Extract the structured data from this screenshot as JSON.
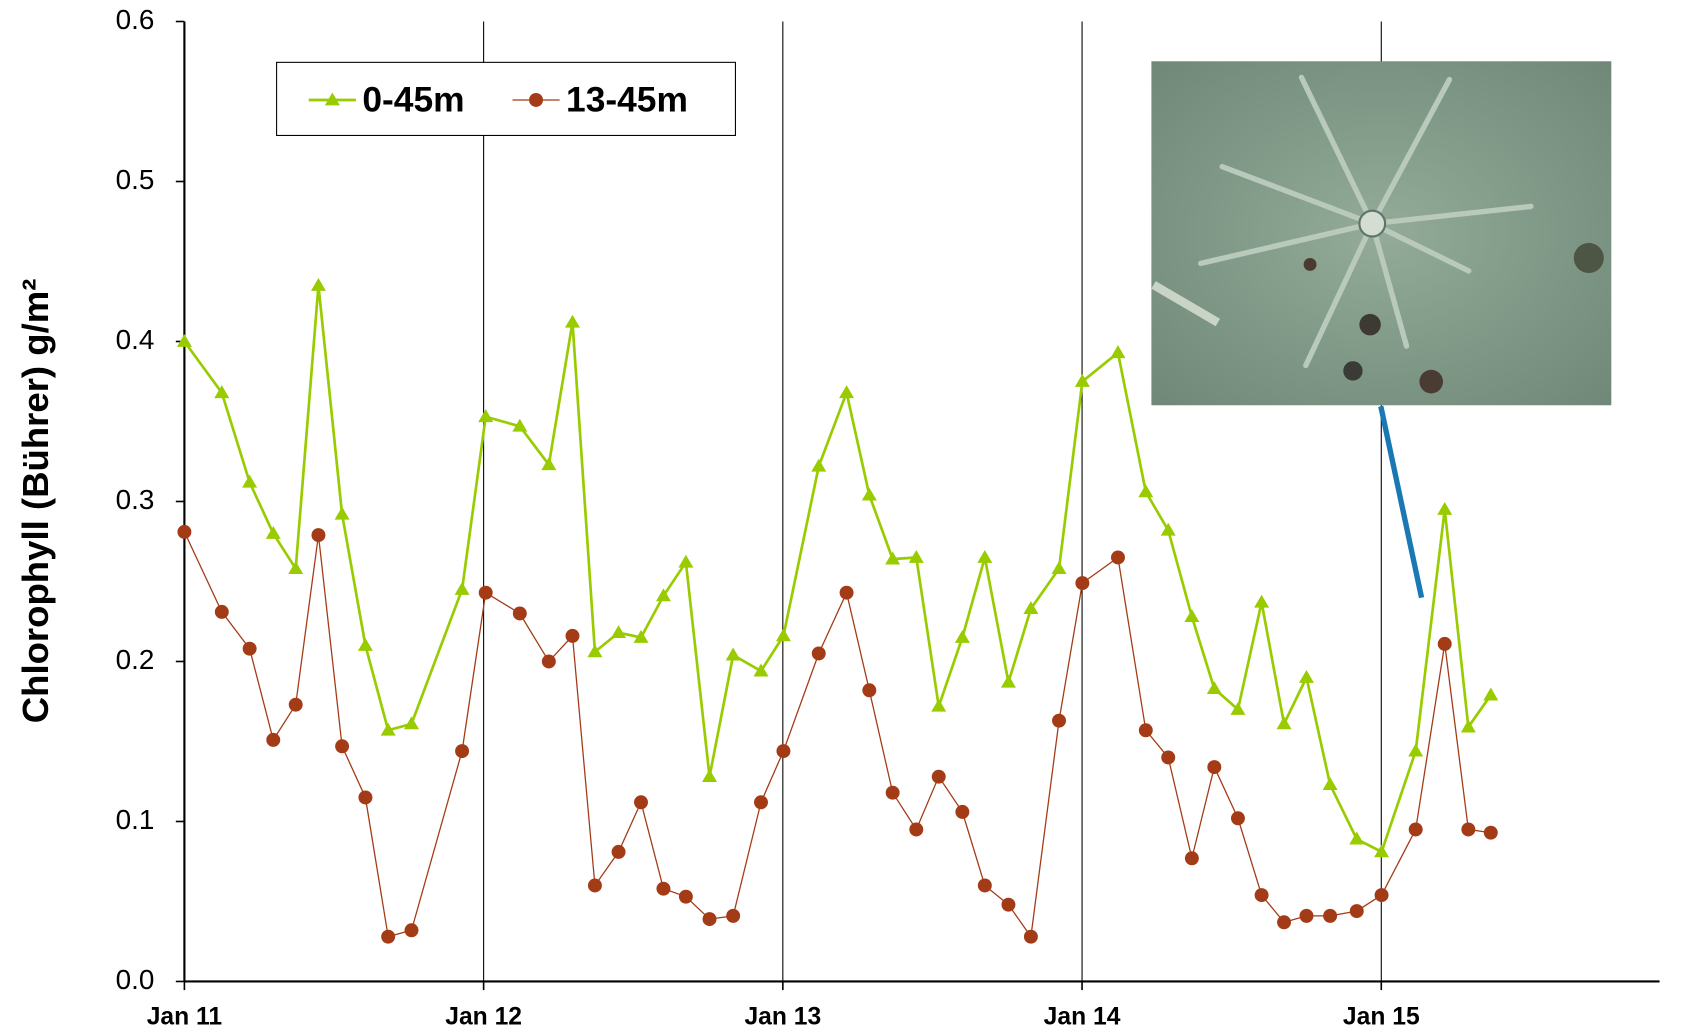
{
  "chart_data": {
    "type": "line",
    "y_label": "Chlorophyll (Bührer) g/m²",
    "x": [
      0,
      0.125,
      0.218,
      0.297,
      0.372,
      0.448,
      0.527,
      0.605,
      0.681,
      0.759,
      0.928,
      1.007,
      1.121,
      1.218,
      1.297,
      1.372,
      1.451,
      1.526,
      1.601,
      1.676,
      1.755,
      1.834,
      1.927,
      2.002,
      2.12,
      2.213,
      2.289,
      2.367,
      2.446,
      2.521,
      2.6,
      2.675,
      2.754,
      2.829,
      2.923,
      3.001,
      3.12,
      3.213,
      3.288,
      3.367,
      3.442,
      3.521,
      3.6,
      3.675,
      3.75,
      3.829,
      3.918,
      4.001,
      4.115,
      4.212,
      4.291,
      4.366
    ],
    "series": [
      {
        "name": "0-45m",
        "color": "#99cc00",
        "marker": "triangle",
        "values": [
          0.4,
          0.368,
          0.312,
          0.28,
          0.258,
          0.435,
          0.292,
          0.21,
          0.157,
          0.161,
          0.245,
          0.353,
          0.347,
          0.323,
          0.412,
          0.206,
          0.218,
          0.215,
          0.241,
          0.262,
          0.128,
          0.204,
          0.194,
          0.216,
          0.322,
          0.368,
          0.304,
          0.264,
          0.265,
          0.172,
          0.215,
          0.265,
          0.187,
          0.233,
          0.258,
          0.375,
          0.393,
          0.306,
          0.282,
          0.228,
          0.183,
          0.17,
          0.237,
          0.161,
          0.19,
          0.123,
          0.089,
          0.081,
          0.144,
          0.295,
          0.159,
          0.179
        ]
      },
      {
        "name": "13-45m",
        "color": "#a33b17",
        "marker": "circle",
        "values": [
          0.281,
          0.231,
          0.208,
          0.151,
          0.173,
          0.279,
          0.147,
          0.115,
          0.028,
          0.032,
          0.144,
          0.243,
          0.23,
          0.2,
          0.216,
          0.06,
          0.081,
          0.112,
          0.058,
          0.053,
          0.039,
          0.041,
          0.112,
          0.144,
          0.205,
          0.243,
          0.182,
          0.118,
          0.095,
          0.128,
          0.106,
          0.06,
          0.048,
          0.028,
          0.163,
          0.249,
          0.265,
          0.157,
          0.14,
          0.077,
          0.134,
          0.102,
          0.054,
          0.037,
          0.041,
          0.041,
          0.044,
          0.054,
          0.095,
          0.211,
          0.095,
          0.093
        ]
      }
    ],
    "xlim": [
      0,
      4.93
    ],
    "xticks": [
      {
        "value": 0,
        "label": "Jan 11"
      },
      {
        "value": 1,
        "label": "Jan 12"
      },
      {
        "value": 2,
        "label": "Jan 13"
      },
      {
        "value": 3,
        "label": "Jan 14"
      },
      {
        "value": 4,
        "label": "Jan 15"
      }
    ],
    "ylim": [
      0,
      0.6
    ],
    "yticks": [
      {
        "value": 0,
        "label": "0.0"
      },
      0.1,
      0.2,
      0.3,
      0.4,
      0.5,
      0.6
    ],
    "grid": "x",
    "legend": "top-left"
  }
}
